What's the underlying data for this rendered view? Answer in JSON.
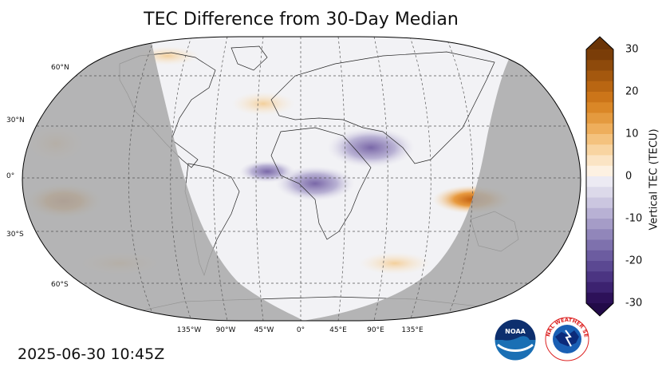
{
  "title": "TEC Difference from 30-Day Median",
  "timestamp": "2025-06-30 10:45Z",
  "colorbar": {
    "label": "Vertical TEC (TECU)",
    "ticks": [
      "30",
      "20",
      "10",
      "0",
      "-10",
      "-20",
      "-30"
    ],
    "min": -30,
    "max": 30
  },
  "lat_labels": [
    "60°N",
    "30°N",
    "0°",
    "30°S",
    "60°S"
  ],
  "lon_labels": [
    "135°W",
    "90°W",
    "45°W",
    "0°",
    "45°E",
    "90°E",
    "135°E"
  ],
  "colors": {
    "night_shade": "#a9a9a9",
    "positive": "#d9761a",
    "negative": "#5b3f8f"
  },
  "logos": {
    "noaa": "NOAA",
    "nws": "NATIONAL WEATHER SERVICE"
  }
}
